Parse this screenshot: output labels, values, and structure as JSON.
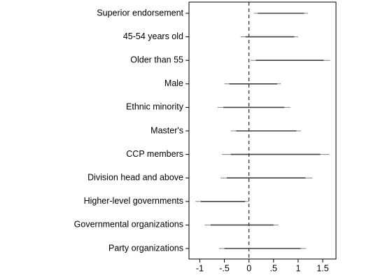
{
  "chart_data": {
    "type": "coefplot",
    "categories": [
      "Superior endorsement",
      "45-54 years old",
      "Older than 55",
      "Male",
      "Ethnic minority",
      "Master's",
      "CCP members",
      "Division head and above",
      "Higher-level governments",
      "Governmental organizations",
      "Party organizations"
    ],
    "outer_low": [
      0.1,
      -0.17,
      0.03,
      -0.5,
      -0.64,
      -0.37,
      -0.55,
      -0.58,
      -1.09,
      -0.9,
      -0.61
    ],
    "outer_high": [
      1.2,
      1.0,
      1.65,
      0.65,
      0.84,
      1.06,
      1.63,
      1.29,
      0.0,
      0.6,
      1.16
    ],
    "inner_low": [
      0.18,
      -0.07,
      0.14,
      -0.4,
      -0.52,
      -0.26,
      -0.37,
      -0.45,
      -0.98,
      -0.78,
      -0.5
    ],
    "inner_high": [
      1.12,
      0.92,
      1.52,
      0.57,
      0.72,
      0.96,
      1.45,
      1.15,
      -0.08,
      0.5,
      1.05
    ],
    "outer_color": "#808080",
    "inner_color": "#404040",
    "reference_line": 0,
    "xlim": [
      -1.22,
      1.77
    ],
    "xticks": [
      -1,
      {
        "value": -0.5,
        "label": "-.5"
      },
      0,
      {
        "value": 0.5,
        "label": ".5"
      },
      1,
      1.5
    ]
  }
}
